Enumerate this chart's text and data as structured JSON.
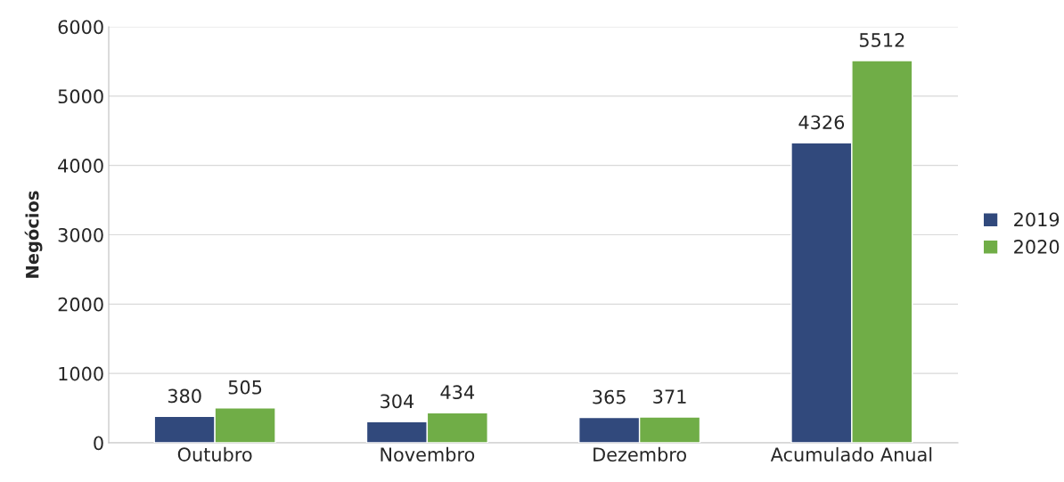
{
  "chart_data": {
    "type": "bar",
    "ylabel": "Negócios",
    "categories": [
      "Outubro",
      "Novembro",
      "Dezembro",
      "Acumulado Anual"
    ],
    "series": [
      {
        "name": "2019",
        "color": "#31497c",
        "values": [
          380,
          304,
          365,
          4326
        ]
      },
      {
        "name": "2020",
        "color": "#70ad47",
        "values": [
          505,
          434,
          371,
          5512
        ]
      }
    ],
    "ylim": [
      0,
      6000
    ],
    "yticks": [
      0,
      1000,
      2000,
      3000,
      4000,
      5000,
      6000
    ],
    "grid": "y",
    "legend": "right",
    "data_labels": true
  }
}
